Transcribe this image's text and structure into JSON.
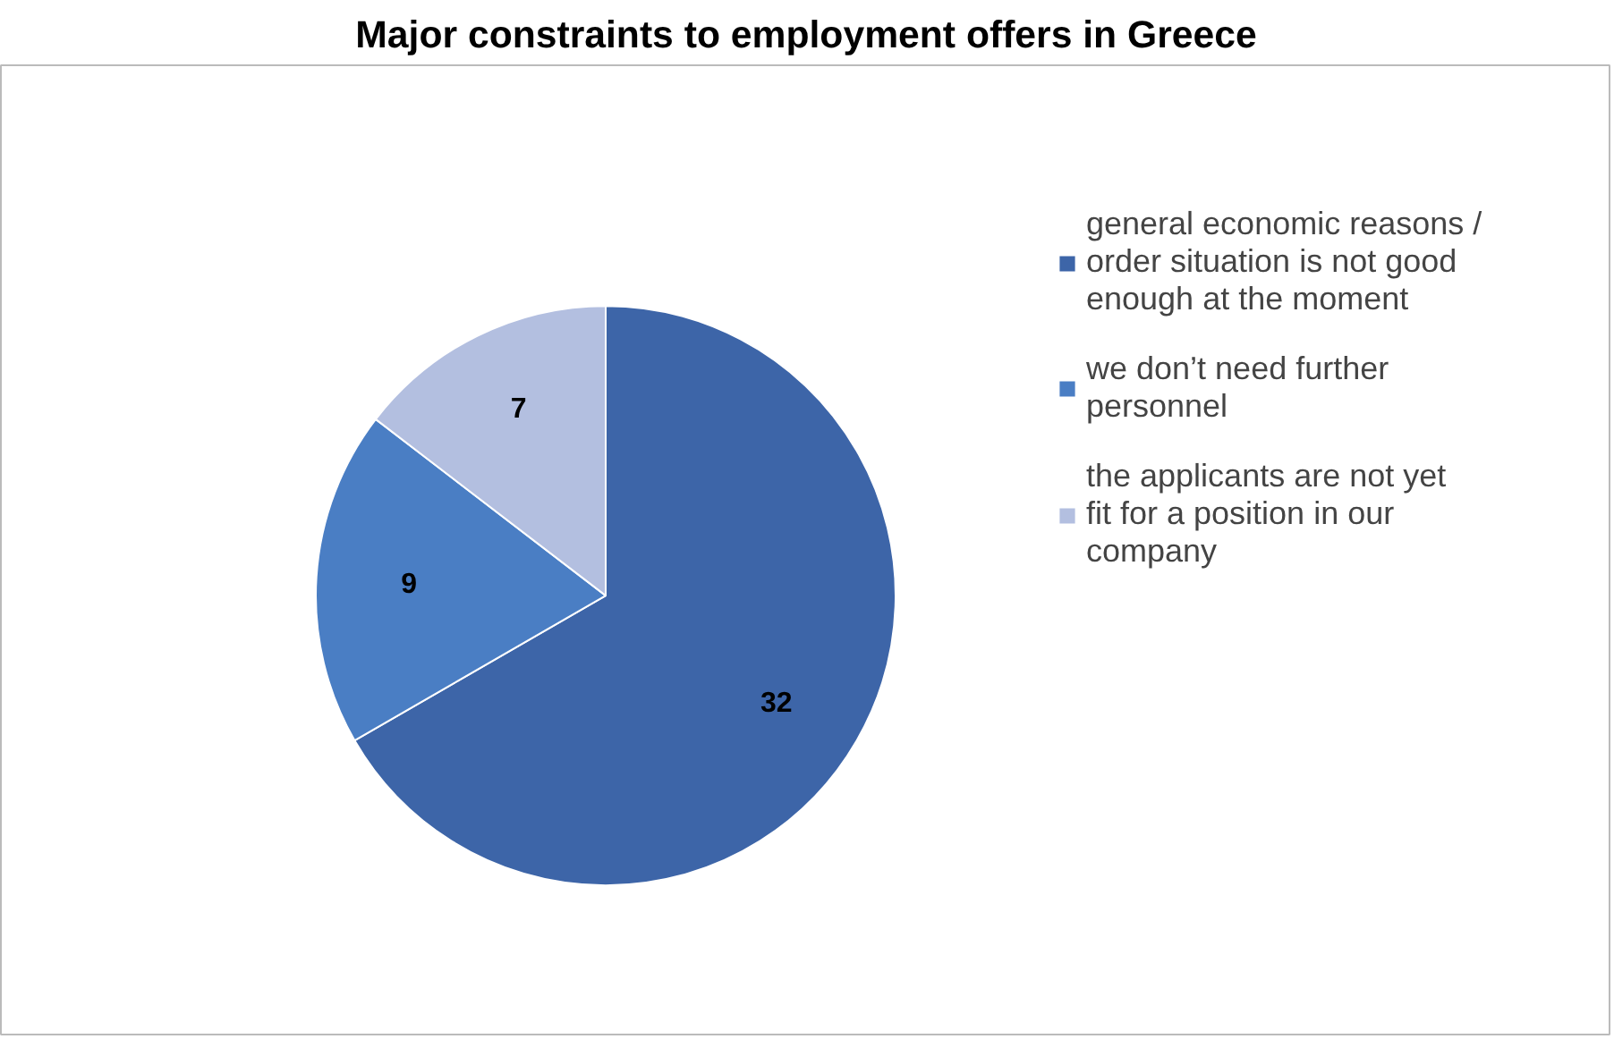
{
  "chart_data": {
    "type": "pie",
    "title": "Major constraints to employment offers in Greece",
    "categories": [
      "general economic reasons / order situation is not good enough at the moment",
      "we don’t need further personnel",
      "the applicants are not yet fit for a position in our company"
    ],
    "values": [
      32,
      9,
      7
    ],
    "colors": [
      "#3d65a8",
      "#4a7ec4",
      "#b3bfe0"
    ],
    "data_labels": true,
    "legend": "right"
  }
}
